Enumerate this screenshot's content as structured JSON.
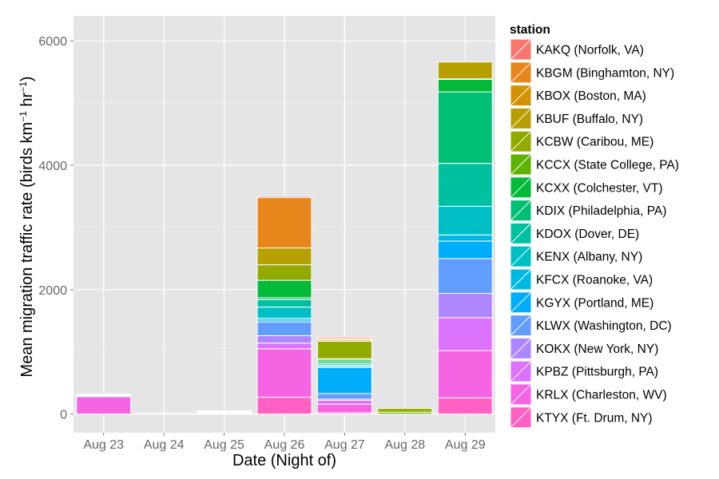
{
  "chart_data": {
    "type": "bar",
    "stacked": true,
    "title": "",
    "xlabel": "Date (Night of)",
    "ylabel": "Mean migration traffic rate (birds km",
    "ylabel_unit_a": "−1",
    "ylabel_unit_mid": " hr",
    "ylabel_unit_b": "−1",
    "ylabel_close": ")",
    "ylim": [
      -300,
      6400
    ],
    "yticks": [
      0,
      2000,
      4000,
      6000
    ],
    "grid": true,
    "legend_title": "station",
    "legend_position": "right",
    "categories": [
      "Aug 23",
      "Aug 24",
      "Aug 25",
      "Aug 26",
      "Aug 27",
      "Aug 28",
      "Aug 29"
    ],
    "series": [
      {
        "name": "KAKQ (Norfolk, VA)",
        "color": "#F8766D",
        "values": [
          0,
          0,
          0,
          20,
          20,
          0,
          0
        ]
      },
      {
        "name": "KBGM (Binghamton, NY)",
        "color": "#E7861B",
        "values": [
          0,
          0,
          0,
          810,
          20,
          0,
          0
        ]
      },
      {
        "name": "KBOX (Boston, MA)",
        "color": "#D39200",
        "values": [
          0,
          0,
          0,
          0,
          10,
          0,
          0
        ]
      },
      {
        "name": "KBUF (Buffalo, NY)",
        "color": "#B79F00",
        "values": [
          0,
          0,
          0,
          270,
          20,
          0,
          270
        ]
      },
      {
        "name": "KCBW (Caribou, ME)",
        "color": "#93AA00",
        "values": [
          0,
          0,
          0,
          250,
          280,
          60,
          0
        ]
      },
      {
        "name": "KCCX (State College, PA)",
        "color": "#5EB300",
        "values": [
          0,
          0,
          0,
          0,
          20,
          30,
          10
        ]
      },
      {
        "name": "KCXX (Colchester, VT)",
        "color": "#00BA38",
        "values": [
          0,
          0,
          0,
          280,
          30,
          0,
          200
        ]
      },
      {
        "name": "KDIX (Philadelphia, PA)",
        "color": "#00BF74",
        "values": [
          0,
          0,
          0,
          30,
          30,
          0,
          1150
        ]
      },
      {
        "name": "KDOX (Dover, DE)",
        "color": "#00C19F",
        "values": [
          0,
          0,
          0,
          120,
          20,
          0,
          690
        ]
      },
      {
        "name": "KENX (Albany, NY)",
        "color": "#00BFC4",
        "values": [
          0,
          0,
          0,
          180,
          20,
          0,
          460
        ]
      },
      {
        "name": "KFCX (Roanoke, VA)",
        "color": "#00B9E3",
        "values": [
          0,
          0,
          0,
          30,
          20,
          0,
          100
        ]
      },
      {
        "name": "KGYX (Portland, ME)",
        "color": "#00ADFA",
        "values": [
          0,
          0,
          0,
          30,
          420,
          0,
          280
        ]
      },
      {
        "name": "KLWX (Washington, DC)",
        "color": "#619CFF",
        "values": [
          0,
          0,
          0,
          220,
          90,
          0,
          560
        ]
      },
      {
        "name": "KOKX (New York, NY)",
        "color": "#AE87FF",
        "values": [
          0,
          0,
          0,
          120,
          20,
          0,
          390
        ]
      },
      {
        "name": "KPBZ (Pittsburgh, PA)",
        "color": "#DB72FB",
        "values": [
          0,
          0,
          0,
          90,
          60,
          0,
          530
        ]
      },
      {
        "name": "KRLX (Charleston, WV)",
        "color": "#F564E3",
        "values": [
          280,
          0,
          0,
          780,
          140,
          0,
          760
        ]
      },
      {
        "name": "KTYX (Ft. Drum, NY)",
        "color": "#FF61C3",
        "values": [
          0,
          0,
          0,
          270,
          20,
          0,
          260
        ]
      }
    ],
    "outline_only_tiny_stacks": [
      {
        "category": "Aug 23",
        "extra": 40
      },
      {
        "category": "Aug 24",
        "extra": 10
      },
      {
        "category": "Aug 25",
        "extra": 50
      }
    ]
  }
}
